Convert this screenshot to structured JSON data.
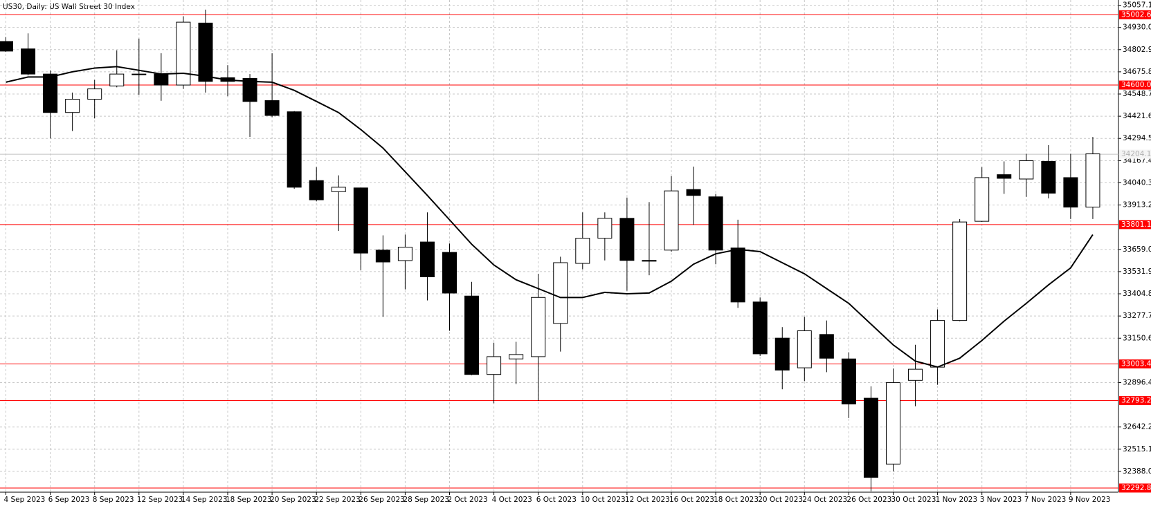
{
  "chart_data": {
    "type": "candlestick",
    "title": "US30, Daily:  US Wall Street 30 Index",
    "categories": [
      "4 Sep 2023",
      null,
      "6 Sep 2023",
      null,
      "8 Sep 2023",
      null,
      "12 Sep 2023",
      null,
      "14 Sep 2023",
      null,
      "18 Sep 2023",
      null,
      "20 Sep 2023",
      null,
      "22 Sep 2023",
      null,
      "26 Sep 2023",
      null,
      "28 Sep 2023",
      null,
      "2 Oct 2023",
      null,
      "4 Oct 2023",
      null,
      "6 Oct 2023",
      null,
      "10 Oct 2023",
      null,
      "12 Oct 2023",
      null,
      "16 Oct 2023",
      null,
      "18 Oct 2023",
      null,
      "20 Oct 2023",
      null,
      "24 Oct 2023",
      null,
      "26 Oct 2023",
      null,
      "30 Oct 2023",
      null,
      "1 Nov 2023",
      null,
      "3 Nov 2023",
      null,
      "7 Nov 2023",
      null,
      "9 Nov 2023",
      null
    ],
    "open": [
      34849.5,
      34807,
      34663,
      34443,
      34519,
      34595,
      34663,
      34663,
      34600,
      34955,
      34642,
      34638,
      34511,
      34447,
      34053,
      33989.5,
      34011,
      33655,
      33595,
      33701.4,
      33642,
      33392,
      32943,
      33032,
      33045,
      33235,
      33579,
      33723,
      33837,
      33596,
      33655,
      34002,
      33960,
      33667,
      33358,
      33151,
      32981,
      33172,
      33032,
      32807,
      32430,
      32909,
      32985,
      33252,
      33820,
      34087,
      34062,
      34163,
      34070,
      33901
    ],
    "high": [
      34875,
      34896,
      34684,
      34557,
      34629,
      34799,
      34866,
      34782,
      34994,
      35032,
      34714,
      34663,
      34782,
      34451,
      34129,
      34083,
      34011,
      33739.5,
      33744,
      33871,
      33693,
      33473,
      33125,
      33130,
      33519,
      33617,
      33871,
      33871,
      33956,
      33930,
      34078,
      34133,
      33977,
      33829,
      33384,
      33214,
      33273,
      33252,
      33070,
      32875,
      32977,
      33113,
      33316,
      33833,
      34129,
      34163,
      34206,
      34256,
      34206,
      34303
    ],
    "low": [
      34790,
      34655,
      34294.5,
      34337,
      34409,
      34587,
      34544,
      34510,
      34578,
      34557,
      34536,
      34303,
      34417,
      34006,
      33934,
      33765,
      33540,
      33273,
      33430,
      33367,
      33193,
      32939,
      32778,
      32888,
      32791,
      33074,
      33545,
      33596,
      33422,
      33511,
      33646,
      33799,
      33574,
      33324,
      33049,
      32858,
      32905,
      32956,
      32693,
      32274,
      32388,
      32761,
      32884,
      33248,
      33816,
      33977,
      33960,
      33951,
      33833,
      33833
    ],
    "close": [
      34794.5,
      34663,
      34442.8,
      34519,
      34578,
      34663,
      34659,
      34600,
      34960,
      34621,
      34621,
      34506,
      34426,
      34015,
      33943,
      34015,
      33638,
      33587,
      33672,
      33502,
      33409,
      32943,
      33045,
      33057,
      33384,
      33583,
      33723,
      33837,
      33596,
      33591.5,
      33994,
      33968,
      33655,
      33358,
      33061,
      32968,
      33193,
      33036,
      32774,
      32354,
      32896,
      32973,
      33252,
      33816,
      34070,
      34066,
      34167,
      33981,
      33901,
      34206
    ],
    "up_color": "#ffffff",
    "down_color": "#000000",
    "moving_average": {
      "color": "#000000",
      "values": [
        34616.5,
        34646.2,
        34646.2,
        34675.8,
        34697.0,
        34705.5,
        34684.3,
        34663.1,
        34667.4,
        34650.4,
        34629.2,
        34620.8,
        34616.5,
        34569.9,
        34506.4,
        34442.8,
        34345.4,
        34239.5,
        34103.9,
        33968.3,
        33828.5,
        33688.7,
        33570.1,
        33485.4,
        33434.5,
        33383.7,
        33383.7,
        33413.4,
        33404.9,
        33409.1,
        33476.9,
        33574.3,
        33633.6,
        33659.0,
        33646.3,
        33582.8,
        33519.2,
        33434.5,
        33349.8,
        33231.2,
        33112.5,
        33019.3,
        32985.4,
        33036.2,
        33137.9,
        33248.0,
        33349.8,
        33455.7,
        33553.2,
        33743.8
      ]
    },
    "levels": [
      {
        "value": 35002.6,
        "color": "#ff0000"
      },
      {
        "value": 34600.0,
        "label": "34600.0",
        "color": "#ff0000"
      },
      {
        "value": 33801.1,
        "color": "#ff0000"
      },
      {
        "value": 33003.4,
        "color": "#ff0000"
      },
      {
        "value": 32793.2,
        "color": "#ff0000"
      },
      {
        "value": 32292.8,
        "color": "#ff0000"
      },
      {
        "value": 34204.1,
        "color": "#c0c0c0"
      }
    ],
    "ylim": [
      32269,
      35087
    ],
    "yticks": [
      35057.1,
      {
        "value": 34930,
        "label": "34930.0"
      },
      34802.9,
      34675.8,
      34548.7,
      34421.6,
      34294.5,
      34167.4,
      34040.3,
      33913.2,
      {
        "value": 33659,
        "label": "33659.0"
      },
      33531.9,
      33404.8,
      33277.7,
      33150.6,
      32896.4,
      32642.2,
      32515.1,
      {
        "value": 32388,
        "label": "32388.0"
      }
    ],
    "grid": true
  }
}
